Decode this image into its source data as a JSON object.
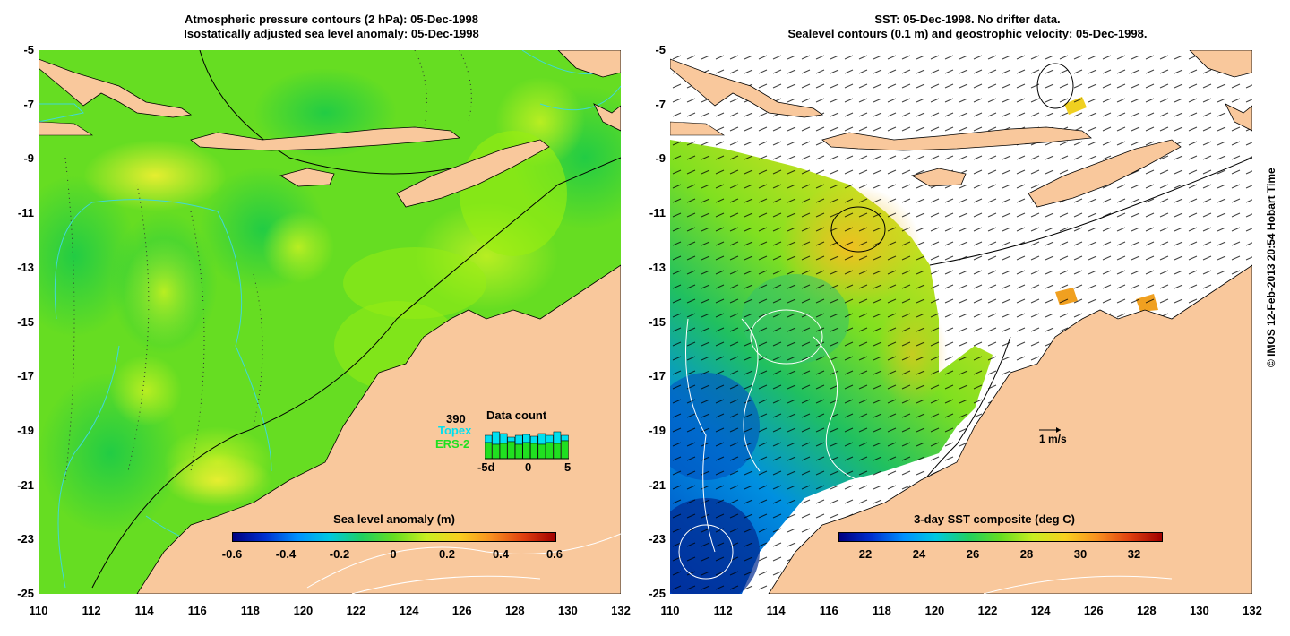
{
  "left_panel": {
    "title_line1": "Atmospheric pressure contours (2 hPa): 05-Dec-1998",
    "title_line2": "Isostatically adjusted sea level anomaly: 05-Dec-1998",
    "colorbar_label": "Sea level anomaly (m)",
    "colorbar_ticks": [
      "-0.6",
      "-0.4",
      "-0.2",
      "0",
      "0.2",
      "0.4",
      "0.6"
    ],
    "data_count": {
      "title": "Data count",
      "count": "390",
      "topex_label": "Topex",
      "ers_label": "ERS-2",
      "axis_ticks": [
        "-5d",
        "0",
        "5"
      ],
      "topex_color": "#00e0f0",
      "ers_color": "#20e020"
    }
  },
  "right_panel": {
    "title_line1": "SST: 05-Dec-1998. No drifter data.",
    "title_line2": "Sealevel contours (0.1 m) and geostrophic velocity: 05-Dec-1998.",
    "colorbar_label": "3-day SST composite (deg C)",
    "colorbar_ticks": [
      "22",
      "24",
      "26",
      "28",
      "30",
      "32"
    ],
    "scale_label": "1 m/s"
  },
  "axes": {
    "y_ticks": [
      "-5",
      "-7",
      "-9",
      "-11",
      "-13",
      "-15",
      "-17",
      "-19",
      "-21",
      "-23",
      "-25"
    ],
    "x_ticks": [
      "110",
      "112",
      "114",
      "116",
      "118",
      "120",
      "122",
      "124",
      "126",
      "128",
      "130",
      "132"
    ]
  },
  "copyright": "© IMOS 12-Feb-2013 20:54 Hobart Time",
  "colors": {
    "land": "#f9c89c",
    "ocean_green": "#66dd22",
    "contour": "#000000"
  }
}
